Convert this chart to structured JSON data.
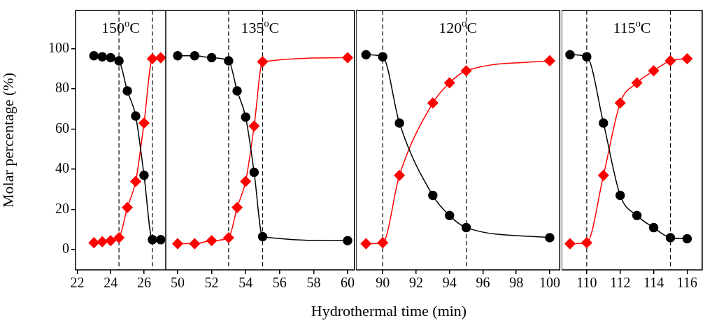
{
  "chart_data": [
    {
      "type": "line",
      "title": "150$^{o}$C",
      "ylabel": "Molar percentage (%)",
      "xlim": [
        21.9,
        27.3
      ],
      "xticks": [
        22,
        24,
        26
      ],
      "ylim": [
        -10,
        119
      ],
      "yticks": [
        0,
        20,
        40,
        60,
        80,
        100
      ],
      "series": [
        {
          "color": "#000000",
          "marker": "circle",
          "x": [
            23,
            23.5,
            24,
            24.5,
            25,
            25.5,
            26,
            26.5,
            27
          ],
          "values": [
            96.5,
            96,
            95.5,
            94,
            79,
            66.5,
            37,
            5,
            5
          ]
        },
        {
          "color": "#ff0000",
          "marker": "diamond",
          "x": [
            23,
            23.5,
            24,
            24.5,
            25,
            25.5,
            26,
            26.5,
            27
          ],
          "values": [
            3.5,
            4,
            4.5,
            6,
            21,
            34,
            63,
            95,
            95.5
          ]
        }
      ],
      "ref_lines": [
        {
          "axis": "x",
          "value": 24.5,
          "color": "#000000",
          "line_style": "dashed"
        },
        {
          "axis": "x",
          "value": 26.5,
          "color": "#000000",
          "line_style": "dashed"
        }
      ]
    },
    {
      "type": "line",
      "title": "135$^{o}$C",
      "xlim": [
        49.3,
        60.4
      ],
      "xticks": [
        50,
        52,
        54,
        56,
        58,
        60
      ],
      "ylim": [
        -10,
        119
      ],
      "tick_labels": "x",
      "series": [
        {
          "color": "#000000",
          "marker": "circle",
          "x": [
            50,
            51,
            52,
            53,
            53.5,
            54,
            54.5,
            55,
            60
          ],
          "values": [
            96.5,
            96.5,
            95.5,
            94,
            79,
            66,
            38.5,
            6.5,
            4.5
          ]
        },
        {
          "color": "#ff0000",
          "marker": "diamond",
          "x": [
            50,
            51,
            52,
            53,
            53.5,
            54,
            54.5,
            55,
            60
          ],
          "values": [
            3,
            3,
            4.5,
            6,
            21,
            34,
            61.5,
            93.5,
            95.5
          ]
        }
      ],
      "ref_lines": [
        {
          "axis": "x",
          "value": 53,
          "color": "#000000",
          "line_style": "dashed"
        },
        {
          "axis": "x",
          "value": 55,
          "color": "#000000",
          "line_style": "dashed"
        }
      ]
    },
    {
      "type": "line",
      "title": "120$^{o}$C",
      "xlabel": "Hydrothermal time (min)",
      "xlim": [
        88.4,
        100.6
      ],
      "xticks": [
        90,
        92,
        94,
        96,
        98,
        100
      ],
      "ylim": [
        -10,
        119
      ],
      "tick_labels": "x",
      "series": [
        {
          "color": "#000000",
          "marker": "circle",
          "x": [
            89,
            90,
            91,
            93,
            94,
            95,
            100
          ],
          "values": [
            97,
            96,
            63,
            27,
            17,
            11,
            6
          ]
        },
        {
          "color": "#ff0000",
          "marker": "diamond",
          "x": [
            89,
            90,
            91,
            93,
            94,
            95,
            100
          ],
          "values": [
            3,
            3.5,
            37,
            73,
            83,
            89,
            94
          ]
        }
      ],
      "ref_lines": [
        {
          "axis": "x",
          "value": 90,
          "color": "#000000",
          "line_style": "dashed"
        },
        {
          "axis": "x",
          "value": 95,
          "color": "#000000",
          "line_style": "dashed"
        }
      ]
    },
    {
      "type": "line",
      "title": "115$^{o}$C",
      "xlim": [
        108.5,
        116.9
      ],
      "xticks": [
        110,
        112,
        114,
        116
      ],
      "ylim": [
        -10,
        119
      ],
      "tick_labels": "x",
      "series": [
        {
          "color": "#000000",
          "marker": "circle",
          "x": [
            109,
            110,
            111,
            112,
            113,
            114,
            115,
            116
          ],
          "values": [
            97,
            96,
            63,
            27,
            17,
            11,
            6,
            5.5
          ]
        },
        {
          "color": "#ff0000",
          "marker": "diamond",
          "x": [
            109,
            110,
            111,
            112,
            113,
            114,
            115,
            116
          ],
          "values": [
            3,
            3.5,
            37,
            73,
            83,
            89,
            94,
            95
          ]
        }
      ],
      "ref_lines": [
        {
          "axis": "x",
          "value": 110,
          "color": "#000000",
          "line_style": "dashed"
        },
        {
          "axis": "x",
          "value": 115,
          "color": "#000000",
          "line_style": "dashed"
        }
      ]
    }
  ]
}
